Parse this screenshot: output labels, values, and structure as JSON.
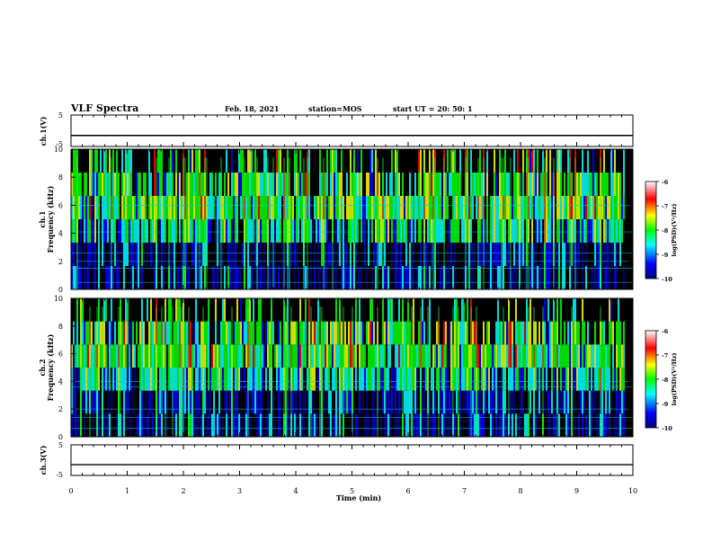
{
  "header": {
    "title": "VLF Spectra",
    "date": "Feb. 18, 2021",
    "station": "station=MOS",
    "start": "start  UT =   20: 50: 1"
  },
  "colors": {
    "background": "#000000",
    "colormap": [
      "#000080",
      "#0000ff",
      "#00ffff",
      "#00ff00",
      "#ffff00",
      "#ff0000",
      "#ffffff"
    ]
  },
  "chart_data": [
    {
      "type": "line",
      "id": "ch1_voltage",
      "ylabel": "ch.1(V)",
      "yticks": [
        "5",
        "-5"
      ],
      "ylim": [
        -5,
        5
      ],
      "series": [
        {
          "x": [
            0,
            10
          ],
          "values": [
            -1.5,
            -1.5
          ]
        }
      ]
    },
    {
      "type": "heatmap",
      "id": "ch1_spectrogram",
      "ylabel": "ch.1\nFrequency (kHz)",
      "yticks": [
        "0",
        "2",
        "4",
        "6",
        "8",
        "10"
      ],
      "ylim": [
        0,
        10
      ],
      "xlim": [
        0,
        10
      ],
      "colorbar": {
        "label": "log(PSD)(V²/Hz)",
        "ticks": [
          "-6",
          "-7",
          "-8",
          "-9",
          "-10"
        ],
        "range": [
          -10,
          -6
        ]
      }
    },
    {
      "type": "heatmap",
      "id": "ch2_spectrogram",
      "ylabel": "ch.2\nFrequency (kHz)",
      "yticks": [
        "0",
        "2",
        "4",
        "6",
        "8",
        "10"
      ],
      "ylim": [
        0,
        10
      ],
      "xlim": [
        0,
        10
      ],
      "colorbar": {
        "label": "log(PSD)(V²/Hz)",
        "ticks": [
          "-6",
          "-7",
          "-8",
          "-9",
          "-10"
        ],
        "range": [
          -10,
          -6
        ]
      }
    },
    {
      "type": "line",
      "id": "ch3_voltage",
      "ylabel": "ch.3(V)",
      "yticks": [
        "5",
        "-5"
      ],
      "ylim": [
        -5,
        5
      ],
      "series": [
        {
          "x": [
            0,
            10
          ],
          "values": [
            -1.5,
            -1.5
          ]
        }
      ]
    }
  ],
  "xaxis": {
    "label": "Time  (min)",
    "ticks": [
      "0",
      "1",
      "2",
      "3",
      "4",
      "5",
      "6",
      "7",
      "8",
      "9",
      "10"
    ],
    "range": [
      0,
      10
    ]
  }
}
